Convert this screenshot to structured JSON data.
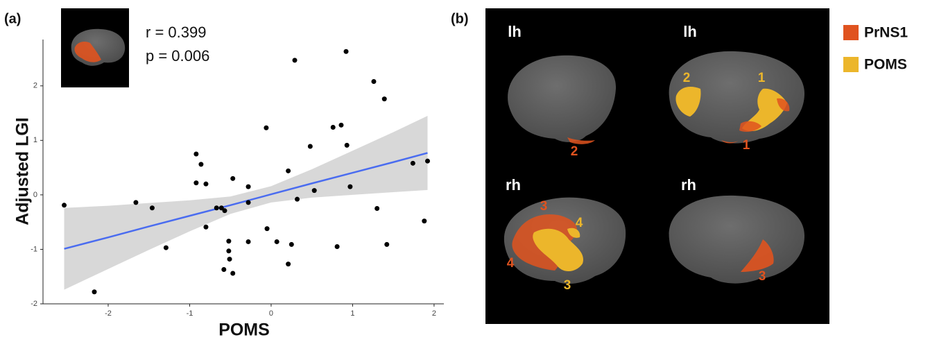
{
  "panel_labels": [
    "(a)",
    "(b)"
  ],
  "chart_data": {
    "type": "scatter",
    "xlabel": "POMS",
    "ylabel": "Adjusted LGI",
    "annotations": [
      "r = 0.399",
      "p = 0.006"
    ],
    "xlim": [
      -2.8,
      2.12
    ],
    "ylim": [
      -2,
      2.85
    ],
    "xticks": [
      -2,
      -1,
      0,
      1,
      2
    ],
    "yticks": [
      -2,
      -1,
      0,
      1,
      2
    ],
    "point_color": "#000000",
    "x": [
      -2.54,
      -2.17,
      -1.66,
      -1.46,
      -1.29,
      -0.92,
      -0.86,
      -0.92,
      -0.8,
      -0.8,
      -0.67,
      -0.61,
      -0.57,
      -0.58,
      -0.52,
      -0.52,
      -0.51,
      -0.47,
      -0.47,
      -0.28,
      -0.28,
      -0.28,
      -0.06,
      -0.05,
      0.07,
      0.21,
      0.21,
      0.25,
      0.29,
      0.32,
      0.48,
      0.53,
      0.76,
      0.81,
      0.86,
      0.93,
      0.92,
      0.97,
      1.26,
      1.3,
      1.39,
      1.42,
      1.74,
      1.88,
      1.92
    ],
    "values": [
      -0.19,
      -1.78,
      -0.14,
      -0.24,
      -0.97,
      0.75,
      0.56,
      0.22,
      0.2,
      -0.59,
      -0.24,
      -0.24,
      -0.29,
      -1.37,
      -0.85,
      -1.03,
      -1.18,
      -1.44,
      0.3,
      0.15,
      -0.14,
      -0.86,
      1.23,
      -0.62,
      -0.86,
      0.44,
      -1.27,
      -0.91,
      2.47,
      -0.08,
      0.89,
      0.08,
      1.24,
      -0.95,
      1.28,
      0.91,
      2.63,
      0.15,
      2.08,
      -0.25,
      1.76,
      -0.91,
      0.58,
      -0.48,
      0.62
    ],
    "fit": {
      "color": "#4a6cf0",
      "x": [
        -2.54,
        -2,
        -1.5,
        -1,
        -0.5,
        0,
        0.5,
        1,
        1.5,
        1.92
      ],
      "values": [
        -0.99,
        -0.78,
        -0.58,
        -0.385,
        -0.19,
        0.01,
        0.21,
        0.405,
        0.6,
        0.77
      ]
    },
    "band": {
      "color": "#d4d4d4",
      "lower": [
        -1.74,
        -1.36,
        -1.01,
        -0.67,
        -0.35,
        -0.14,
        -0.05,
        0.0,
        0.05,
        0.09
      ],
      "upper": [
        -0.24,
        -0.2,
        -0.15,
        -0.1,
        -0.03,
        0.16,
        0.47,
        0.81,
        1.15,
        1.45
      ]
    }
  },
  "brain_panel": {
    "legend": [
      {
        "name": "PrNS1",
        "color": "#e0531f"
      },
      {
        "name": "POMS",
        "color": "#ecb62b"
      }
    ],
    "views": [
      {
        "hemisphere": "lh",
        "labels": [
          {
            "text": "2",
            "color": "#e0531f"
          }
        ]
      },
      {
        "hemisphere": "lh",
        "labels": [
          {
            "text": "2",
            "color": "#ecb62b"
          },
          {
            "text": "1",
            "color": "#ecb62b"
          },
          {
            "text": "1",
            "color": "#e0531f"
          }
        ]
      },
      {
        "hemisphere": "rh",
        "labels": [
          {
            "text": "3",
            "color": "#e0531f"
          },
          {
            "text": "4",
            "color": "#ecb62b"
          },
          {
            "text": "4",
            "color": "#e0531f"
          },
          {
            "text": "3",
            "color": "#ecb62b"
          }
        ]
      },
      {
        "hemisphere": "rh",
        "labels": [
          {
            "text": "3",
            "color": "#e0531f"
          }
        ]
      }
    ]
  }
}
